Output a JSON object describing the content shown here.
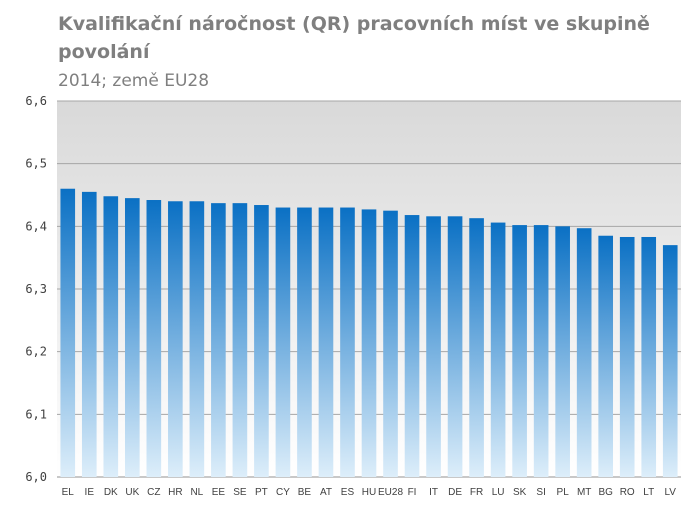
{
  "header": {
    "title": "Kvalifikační náročnost (QR)  pracovních míst ve skupině povolání",
    "subtitle": "2014; země EU28"
  },
  "colors": {
    "plot_bg_top": "#d9d9d9",
    "plot_bg_bottom": "#ffffff",
    "bar_top": "#0a70c4",
    "bar_bottom": "#ddeefa",
    "gridline": "#a6a6a6",
    "text": "#7f7f7f"
  },
  "chart_data": {
    "type": "bar",
    "categories": [
      "EL",
      "IE",
      "DK",
      "UK",
      "CZ",
      "HR",
      "NL",
      "EE",
      "SE",
      "PT",
      "CY",
      "BE",
      "AT",
      "ES",
      "HU",
      "EU28",
      "FI",
      "IT",
      "DE",
      "FR",
      "LU",
      "SK",
      "SI",
      "PL",
      "MT",
      "BG",
      "RO",
      "LT",
      "LV"
    ],
    "values": [
      6.46,
      6.455,
      6.448,
      6.445,
      6.442,
      6.44,
      6.44,
      6.437,
      6.437,
      6.434,
      6.43,
      6.43,
      6.43,
      6.43,
      6.427,
      6.425,
      6.418,
      6.416,
      6.416,
      6.413,
      6.406,
      6.402,
      6.402,
      6.4,
      6.397,
      6.385,
      6.383,
      6.383,
      6.37
    ],
    "ylim": [
      6.0,
      6.6
    ],
    "yticks": [
      "6,0",
      "6,1",
      "6,2",
      "6,3",
      "6,4",
      "6,5",
      "6,6"
    ],
    "grid": true,
    "legend": "none"
  }
}
